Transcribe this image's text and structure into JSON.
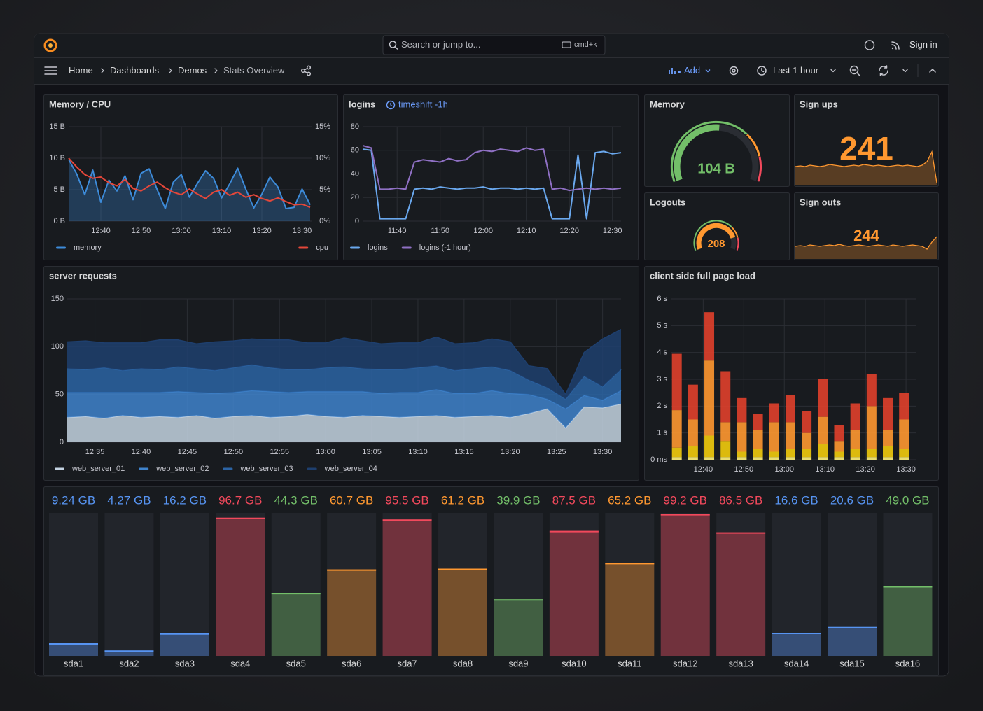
{
  "header": {
    "search_placeholder": "Search or jump to...",
    "shortcut": "cmd+k",
    "sign_in": "Sign in"
  },
  "toolbar": {
    "breadcrumbs": [
      "Home",
      "Dashboards",
      "Demos",
      "Stats Overview"
    ],
    "add": "Add",
    "time_range": "Last 1 hour"
  },
  "chart_data": [
    {
      "type": "line",
      "title": "Memory / CPU",
      "x": [
        752,
        754,
        756,
        758,
        760,
        762,
        764,
        766,
        768,
        770,
        772,
        774,
        776,
        778,
        780,
        782,
        784,
        786,
        788,
        790,
        792,
        794,
        796,
        798,
        800,
        802,
        804,
        806,
        808,
        810,
        812
      ],
      "xlim": [
        752,
        812
      ],
      "xticks": [
        {
          "value": 760,
          "label": "12:40"
        },
        {
          "value": 770,
          "label": "12:50"
        },
        {
          "value": 780,
          "label": "13:00"
        },
        {
          "value": 790,
          "label": "13:10"
        },
        {
          "value": 800,
          "label": "13:20"
        },
        {
          "value": 810,
          "label": "13:30"
        }
      ],
      "ylim": [
        0,
        15
      ],
      "yticks": [
        {
          "value": 0,
          "label": "0 B"
        },
        {
          "value": 5,
          "label": "5 B"
        },
        {
          "value": 10,
          "label": "10 B"
        },
        {
          "value": 15,
          "label": "15 B"
        }
      ],
      "y2lim": [
        0,
        15
      ],
      "y2ticks": [
        {
          "value": 0,
          "label": "0%"
        },
        {
          "value": 5,
          "label": "5%"
        },
        {
          "value": 10,
          "label": "10%"
        },
        {
          "value": 15,
          "label": "15%"
        }
      ],
      "grid": true,
      "series": [
        {
          "name": "memory",
          "color": "#3d8bd9",
          "fill": true,
          "values": [
            9.8,
            7.5,
            4.2,
            8.1,
            3.0,
            6.5,
            4.8,
            7.2,
            3.4,
            7.6,
            8.3,
            5.0,
            2.0,
            6.2,
            7.4,
            3.8,
            6.0,
            8.0,
            6.8,
            3.7,
            5.9,
            8.4,
            5.1,
            2.1,
            4.3,
            7.0,
            5.4,
            2.0,
            2.2,
            5.1,
            2.6
          ]
        },
        {
          "name": "cpu",
          "color": "#e5473a",
          "axis": "y2",
          "values": [
            10.0,
            8.6,
            7.4,
            6.8,
            7.0,
            6.1,
            5.6,
            6.6,
            5.2,
            4.8,
            5.6,
            6.2,
            5.3,
            4.6,
            4.2,
            5.1,
            4.3,
            3.6,
            4.6,
            5.0,
            4.1,
            4.6,
            3.8,
            4.2,
            3.6,
            3.2,
            3.7,
            3.1,
            2.6,
            2.7,
            2.2
          ]
        }
      ]
    },
    {
      "type": "line",
      "title": "logins",
      "annotation": "timeshift -1h",
      "x": [
        692,
        694,
        696,
        698,
        700,
        702,
        704,
        706,
        708,
        710,
        712,
        714,
        716,
        718,
        720,
        722,
        724,
        726,
        728,
        730,
        732,
        734,
        736,
        738,
        740,
        742,
        744,
        746,
        748,
        750,
        752
      ],
      "xlim": [
        692,
        752
      ],
      "xticks": [
        {
          "value": 700,
          "label": "11:40"
        },
        {
          "value": 710,
          "label": "11:50"
        },
        {
          "value": 720,
          "label": "12:00"
        },
        {
          "value": 730,
          "label": "12:10"
        },
        {
          "value": 740,
          "label": "12:20"
        },
        {
          "value": 750,
          "label": "12:30"
        }
      ],
      "ylim": [
        0,
        80
      ],
      "yticks": [
        0,
        20,
        40,
        60,
        80
      ],
      "grid": true,
      "series": [
        {
          "name": "logins",
          "color": "#6aa8ee",
          "values": [
            61,
            60,
            2,
            2,
            2,
            2,
            27,
            28,
            27,
            29,
            28,
            27,
            28,
            28,
            29,
            27,
            28,
            28,
            27,
            28,
            27,
            28,
            2,
            2,
            2,
            56,
            2,
            58,
            59,
            57,
            58
          ]
        },
        {
          "name": "logins (-1 hour)",
          "color": "#8f70c4",
          "values": [
            64,
            62,
            27,
            27,
            28,
            27,
            50,
            52,
            51,
            50,
            53,
            51,
            52,
            58,
            60,
            59,
            61,
            60,
            59,
            62,
            60,
            61,
            27,
            28,
            26,
            27,
            28,
            27,
            28,
            27,
            28
          ]
        }
      ]
    },
    {
      "type": "gauge",
      "title": "Memory",
      "value": 104,
      "value_label": "104 B",
      "min": 0,
      "max": 200,
      "color": "#73bf69"
    },
    {
      "type": "stat",
      "title": "Sign ups",
      "value": 241,
      "color": "#ff9830",
      "sparkline": [
        27,
        28,
        27,
        29,
        28,
        27,
        28,
        30,
        29,
        28,
        27,
        28,
        29,
        28,
        30,
        29,
        28,
        29,
        28,
        27,
        28,
        29,
        28,
        29,
        28,
        27,
        29,
        34,
        48,
        4
      ]
    },
    {
      "type": "gauge",
      "title": "Logouts",
      "value": 208,
      "min": 0,
      "max": 250,
      "color": "#ff9830"
    },
    {
      "type": "stat",
      "title": "Sign outs",
      "value": 244,
      "color": "#ff9830",
      "sparkline": [
        18,
        19,
        18,
        20,
        19,
        18,
        19,
        20,
        19,
        21,
        19,
        18,
        19,
        20,
        19,
        18,
        19,
        20,
        19,
        18,
        20,
        19,
        18,
        19,
        20,
        19,
        18,
        14,
        24,
        32
      ]
    },
    {
      "type": "area",
      "title": "server requests",
      "stacked": true,
      "x": [
        752,
        754,
        756,
        758,
        760,
        762,
        764,
        766,
        768,
        770,
        772,
        774,
        776,
        778,
        780,
        782,
        784,
        786,
        788,
        790,
        792,
        794,
        796,
        798,
        800,
        802,
        804,
        806,
        808,
        810,
        812
      ],
      "xlim": [
        752,
        812
      ],
      "xticks": [
        {
          "value": 755,
          "label": "12:35"
        },
        {
          "value": 760,
          "label": "12:40"
        },
        {
          "value": 765,
          "label": "12:45"
        },
        {
          "value": 770,
          "label": "12:50"
        },
        {
          "value": 775,
          "label": "12:55"
        },
        {
          "value": 780,
          "label": "13:00"
        },
        {
          "value": 785,
          "label": "13:05"
        },
        {
          "value": 790,
          "label": "13:10"
        },
        {
          "value": 795,
          "label": "13:15"
        },
        {
          "value": 800,
          "label": "13:20"
        },
        {
          "value": 805,
          "label": "13:25"
        },
        {
          "value": 810,
          "label": "13:30"
        }
      ],
      "ylim": [
        0,
        150
      ],
      "yticks": [
        0,
        50,
        100,
        150
      ],
      "grid": true,
      "series": [
        {
          "name": "web_server_01",
          "color": "#c4d3e2",
          "values": [
            26,
            27,
            25,
            28,
            26,
            27,
            26,
            28,
            25,
            27,
            28,
            26,
            27,
            29,
            27,
            26,
            28,
            27,
            26,
            27,
            28,
            26,
            27,
            28,
            26,
            30,
            35,
            15,
            37,
            36,
            40
          ]
        },
        {
          "name": "web_server_02",
          "color": "#3f83cc",
          "values": [
            26,
            25,
            27,
            24,
            26,
            25,
            27,
            24,
            26,
            25,
            26,
            27,
            25,
            24,
            26,
            27,
            25,
            24,
            26,
            25,
            27,
            25,
            24,
            26,
            25,
            20,
            10,
            20,
            12,
            8,
            14
          ]
        },
        {
          "name": "web_server_03",
          "color": "#2c64a5",
          "values": [
            25,
            24,
            26,
            23,
            25,
            24,
            26,
            25,
            24,
            26,
            27,
            25,
            24,
            23,
            25,
            26,
            24,
            25,
            24,
            26,
            25,
            24,
            26,
            25,
            24,
            15,
            12,
            10,
            20,
            14,
            22
          ]
        },
        {
          "name": "web_server_04",
          "color": "#1e3f6e",
          "values": [
            28,
            30,
            26,
            29,
            27,
            31,
            28,
            26,
            30,
            28,
            27,
            29,
            31,
            28,
            26,
            30,
            29,
            27,
            28,
            26,
            30,
            28,
            27,
            29,
            30,
            15,
            20,
            5,
            25,
            50,
            42
          ]
        }
      ]
    },
    {
      "type": "bar",
      "title": "client side full page load",
      "stacked": true,
      "x": [
        753.5,
        757.5,
        761.5,
        765.5,
        769.5,
        773.5,
        777.5,
        781.5,
        785.5,
        789.5,
        793.5,
        797.5,
        801.5,
        805.5,
        809.5
      ],
      "xlim": [
        752,
        812.4
      ],
      "xticks": [
        {
          "value": 760,
          "label": "12:40"
        },
        {
          "value": 770,
          "label": "12:50"
        },
        {
          "value": 780,
          "label": "13:00"
        },
        {
          "value": 790,
          "label": "13:10"
        },
        {
          "value": 800,
          "label": "13:20"
        },
        {
          "value": 810,
          "label": "13:30"
        }
      ],
      "ylim": [
        0,
        6
      ],
      "yticks": [
        {
          "value": 0,
          "label": "0 ms"
        },
        {
          "value": 1,
          "label": "1 s"
        },
        {
          "value": 2,
          "label": "2 s"
        },
        {
          "value": 3,
          "label": "3 s"
        },
        {
          "value": 4,
          "label": "4 s"
        },
        {
          "value": 5,
          "label": "5 s"
        },
        {
          "value": 6,
          "label": "6 s"
        }
      ],
      "grid": true,
      "series": [
        {
          "color": "#fff27a",
          "values": [
            0.1,
            0.1,
            0.1,
            0.1,
            0.1,
            0.1,
            0.1,
            0.1,
            0.1,
            0.1,
            0.1,
            0.1,
            0.1,
            0.1,
            0.1
          ]
        },
        {
          "color": "#f2cc0c",
          "values": [
            0.35,
            0.4,
            0.8,
            0.6,
            0.2,
            0.3,
            0.2,
            0.3,
            0.3,
            0.5,
            0.2,
            0.3,
            0.3,
            0.4,
            0.3
          ]
        },
        {
          "color": "#ff9830",
          "values": [
            1.4,
            1.0,
            2.8,
            0.7,
            1.1,
            0.7,
            1.1,
            1.0,
            0.6,
            1.0,
            0.4,
            0.7,
            1.6,
            0.6,
            1.1
          ]
        },
        {
          "color": "#e0402b",
          "values": [
            2.1,
            1.3,
            1.8,
            1.9,
            0.9,
            0.6,
            0.7,
            1.0,
            0.8,
            1.4,
            0.6,
            1.0,
            1.2,
            1.2,
            1.0
          ]
        }
      ]
    },
    {
      "type": "bargauge",
      "ylim": [
        0,
        100
      ],
      "categories": [
        "sda1",
        "sda2",
        "sda3",
        "sda4",
        "sda5",
        "sda6",
        "sda7",
        "sda8",
        "sda9",
        "sda10",
        "sda11",
        "sda12",
        "sda13",
        "sda14",
        "sda15",
        "sda16"
      ],
      "values": [
        9.24,
        4.27,
        16.2,
        96.7,
        44.3,
        60.7,
        95.5,
        61.2,
        39.9,
        87.5,
        65.2,
        99.2,
        86.5,
        16.6,
        20.6,
        49.0
      ],
      "value_labels": [
        "9.24 GB",
        "4.27 GB",
        "16.2 GB",
        "96.7 GB",
        "44.3 GB",
        "60.7 GB",
        "95.5 GB",
        "61.2 GB",
        "39.9 GB",
        "87.5 GB",
        "65.2 GB",
        "99.2 GB",
        "86.5 GB",
        "16.6 GB",
        "20.6 GB",
        "49.0 GB"
      ],
      "colors": [
        "#5794f2",
        "#5794f2",
        "#5794f2",
        "#f2495c",
        "#73bf69",
        "#ff9830",
        "#f2495c",
        "#ff9830",
        "#73bf69",
        "#f2495c",
        "#ff9830",
        "#f2495c",
        "#f2495c",
        "#5794f2",
        "#5794f2",
        "#73bf69"
      ]
    }
  ]
}
